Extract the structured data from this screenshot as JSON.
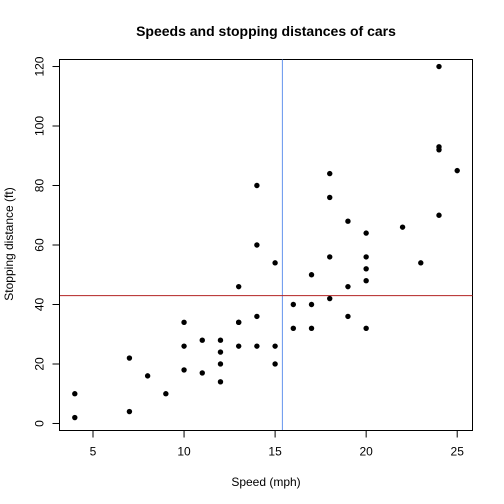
{
  "chart_data": {
    "type": "scatter",
    "title": "Speeds and stopping distances of cars",
    "xlabel": "Speed (mph)",
    "ylabel": "Stopping distance (ft)",
    "xlim": [
      3.16,
      25.84
    ],
    "ylim": [
      -2.36,
      122.36
    ],
    "xticks": [
      5,
      10,
      15,
      20,
      25
    ],
    "yticks": [
      0,
      20,
      40,
      60,
      80,
      100,
      120
    ],
    "grid": false,
    "points": [
      [
        4,
        2
      ],
      [
        4,
        10
      ],
      [
        7,
        4
      ],
      [
        7,
        22
      ],
      [
        8,
        16
      ],
      [
        9,
        10
      ],
      [
        10,
        18
      ],
      [
        10,
        26
      ],
      [
        10,
        34
      ],
      [
        11,
        17
      ],
      [
        11,
        28
      ],
      [
        12,
        14
      ],
      [
        12,
        20
      ],
      [
        12,
        24
      ],
      [
        12,
        28
      ],
      [
        13,
        26
      ],
      [
        13,
        34
      ],
      [
        13,
        34
      ],
      [
        13,
        46
      ],
      [
        14,
        26
      ],
      [
        14,
        36
      ],
      [
        14,
        60
      ],
      [
        14,
        80
      ],
      [
        15,
        20
      ],
      [
        15,
        26
      ],
      [
        15,
        54
      ],
      [
        16,
        32
      ],
      [
        16,
        40
      ],
      [
        17,
        32
      ],
      [
        17,
        40
      ],
      [
        17,
        50
      ],
      [
        18,
        42
      ],
      [
        18,
        56
      ],
      [
        18,
        76
      ],
      [
        18,
        84
      ],
      [
        19,
        36
      ],
      [
        19,
        46
      ],
      [
        19,
        68
      ],
      [
        20,
        32
      ],
      [
        20,
        48
      ],
      [
        20,
        52
      ],
      [
        20,
        56
      ],
      [
        20,
        64
      ],
      [
        22,
        66
      ],
      [
        23,
        54
      ],
      [
        24,
        70
      ],
      [
        24,
        92
      ],
      [
        24,
        93
      ],
      [
        24,
        120
      ],
      [
        25,
        85
      ]
    ],
    "reference_lines": {
      "vertical": {
        "x": 15.4,
        "color": "#6495ED"
      },
      "horizontal": {
        "y": 42.98,
        "color": "#B22222"
      }
    },
    "point_color": "#000000"
  }
}
